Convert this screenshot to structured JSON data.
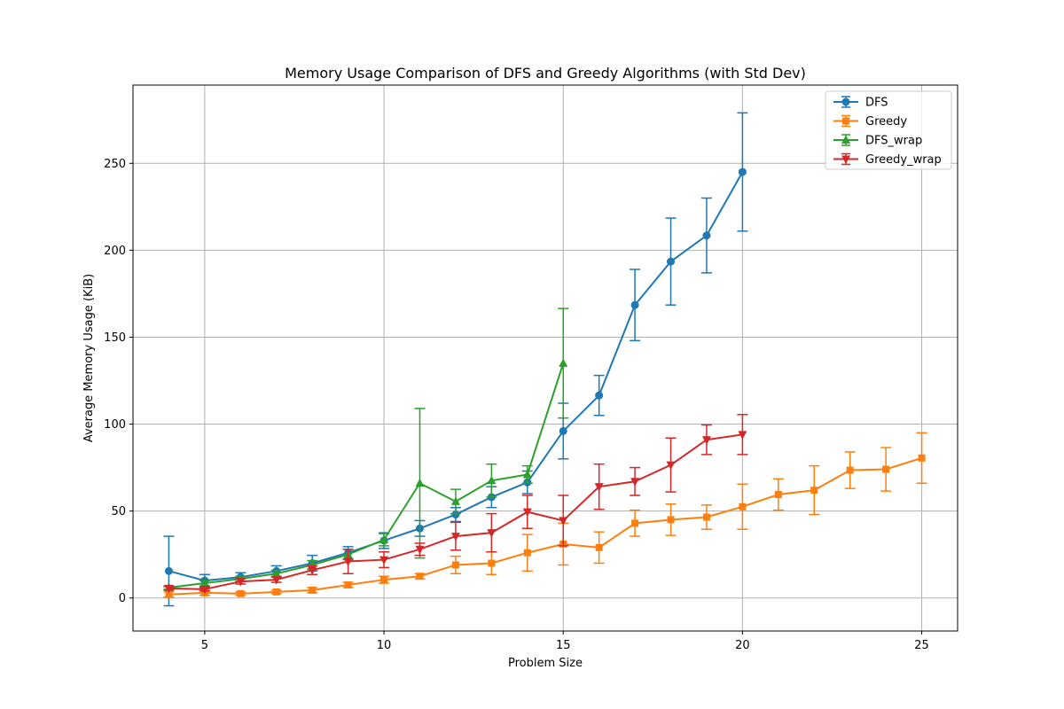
{
  "chart_data": {
    "type": "line",
    "title": "Memory Usage Comparison of DFS and Greedy Algorithms (with Std Dev)",
    "xlabel": "Problem Size",
    "ylabel": "Average Memory Usage (KiB)",
    "xlim": [
      3,
      26
    ],
    "ylim": [
      -19,
      295
    ],
    "xticks": [
      5,
      10,
      15,
      20,
      25
    ],
    "yticks": [
      0,
      50,
      100,
      150,
      200,
      250
    ],
    "grid": true,
    "legend_position": "top-right",
    "series": [
      {
        "name": "DFS",
        "color": "#1f77b4",
        "marker": "circle",
        "x": [
          4,
          5,
          6,
          7,
          8,
          9,
          10,
          11,
          12,
          13,
          14,
          15,
          16,
          17,
          18,
          19,
          20
        ],
        "y": [
          15.5,
          10,
          12,
          15.5,
          20,
          26,
          33,
          40,
          48,
          58,
          66.5,
          96,
          116.5,
          168.5,
          193.5,
          208.5,
          245
        ],
        "err": [
          20,
          3.5,
          2.5,
          3,
          4.5,
          3.5,
          4.5,
          4.5,
          4,
          6,
          6.5,
          16,
          11.5,
          20.5,
          25,
          21.5,
          34
        ]
      },
      {
        "name": "Greedy",
        "color": "#ff7f0e",
        "marker": "square",
        "x": [
          4,
          5,
          6,
          7,
          8,
          9,
          10,
          11,
          12,
          13,
          14,
          15,
          16,
          17,
          18,
          19,
          20,
          21,
          22,
          23,
          24,
          25
        ],
        "y": [
          2,
          3,
          2.5,
          3.5,
          4.5,
          7.5,
          10.5,
          12.5,
          19,
          20,
          26,
          31,
          29,
          43,
          45,
          46.5,
          52.5,
          59.5,
          62,
          73.5,
          74,
          80.5
        ],
        "err": [
          1.5,
          1.5,
          1,
          1,
          1.5,
          1.5,
          2,
          1.5,
          5,
          6.5,
          10.5,
          12,
          9,
          7.5,
          9,
          7,
          13,
          9,
          14,
          10.5,
          12.5,
          14.5
        ]
      },
      {
        "name": "DFS_wrap",
        "color": "#2ca02c",
        "marker": "triangle-up",
        "x": [
          4,
          5,
          6,
          7,
          8,
          9,
          10,
          11,
          12,
          13,
          14,
          15
        ],
        "y": [
          6,
          8.5,
          11,
          14,
          19,
          25,
          33.5,
          66,
          55.5,
          67.5,
          71,
          135
        ],
        "err": [
          1,
          1.5,
          1.5,
          2,
          2.5,
          3,
          3.5,
          43,
          7,
          9.5,
          5,
          31.5
        ]
      },
      {
        "name": "Greedy_wrap",
        "color": "#d62728",
        "marker": "triangle-down",
        "x": [
          4,
          5,
          6,
          7,
          8,
          9,
          10,
          11,
          12,
          13,
          14,
          15,
          16,
          17,
          18,
          19,
          20
        ],
        "y": [
          5.5,
          5,
          9.5,
          10.5,
          16,
          21,
          22,
          28,
          35.5,
          37.5,
          49.5,
          44.5,
          64,
          67,
          76.5,
          91,
          94
        ],
        "err": [
          1,
          1,
          1.5,
          1.5,
          2.5,
          7,
          4.5,
          3.5,
          8,
          11,
          9.5,
          14.5,
          13,
          8,
          15.5,
          8.5,
          11.5
        ]
      }
    ]
  }
}
